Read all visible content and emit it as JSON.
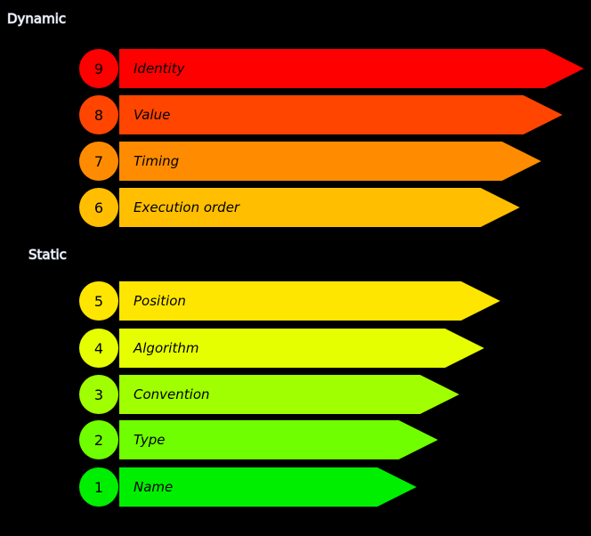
{
  "sections": [
    {
      "label": "Dynamic",
      "items": [
        {
          "number": "9",
          "label": "Identity",
          "color": "#ff0000"
        },
        {
          "number": "8",
          "label": "Value",
          "color": "#ff4500"
        },
        {
          "number": "7",
          "label": "Timing",
          "color": "#ff8c00"
        },
        {
          "number": "6",
          "label": "Execution order",
          "color": "#ffbf00"
        }
      ]
    },
    {
      "label": "Static",
      "items": [
        {
          "number": "5",
          "label": "Position",
          "color": "#ffe600"
        },
        {
          "number": "4",
          "label": "Algorithm",
          "color": "#e6ff00"
        },
        {
          "number": "3",
          "label": "Convention",
          "color": "#a0ff00"
        },
        {
          "number": "2",
          "label": "Type",
          "color": "#70ff00"
        },
        {
          "number": "1",
          "label": "Name",
          "color": "#00ef00"
        }
      ]
    }
  ]
}
